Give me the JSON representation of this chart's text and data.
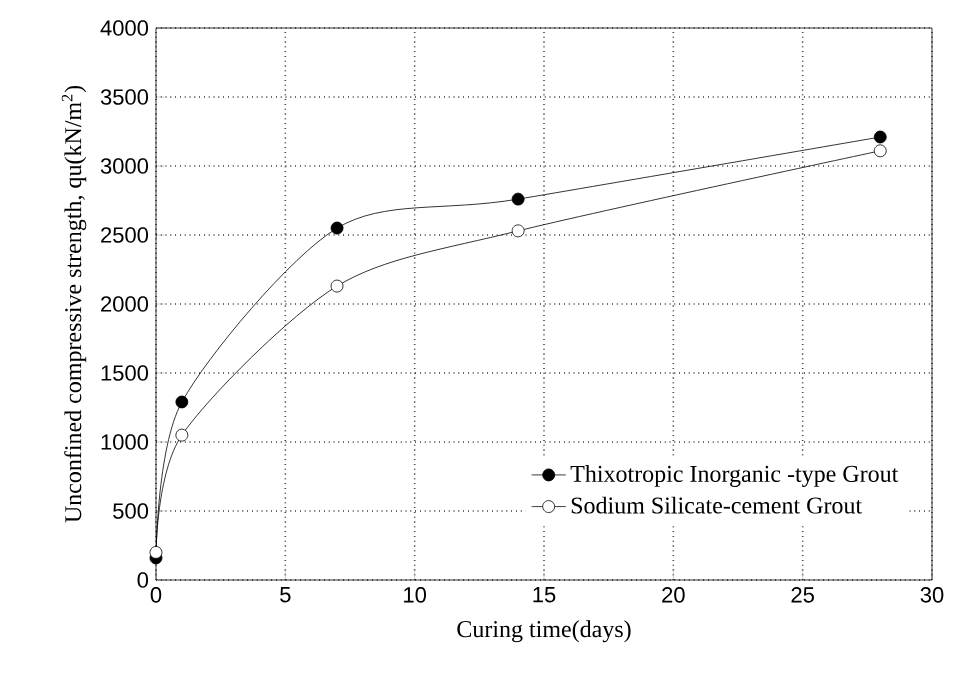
{
  "chart_data": {
    "type": "line",
    "xlabel": "Curing time(days)",
    "ylabel": "Unconfined compressive strength, qu(kN/m$^{2}$)",
    "x": [
      0,
      1,
      7,
      14,
      28
    ],
    "series": [
      {
        "name": "Thixotropic Inorganic -type Grout",
        "color": "#000000",
        "values": [
          160,
          1290,
          2550,
          2760,
          3210
        ]
      },
      {
        "name": "Sodium Silicate-cement Grout",
        "color": "#000000",
        "values": [
          200,
          1050,
          2130,
          2530,
          3110
        ]
      }
    ],
    "xlim": [
      0,
      30
    ],
    "xticks": [
      0,
      5,
      10,
      15,
      20,
      25,
      30
    ],
    "ylim": [
      0,
      4000
    ],
    "yticks": [
      0,
      500,
      1000,
      1500,
      2000,
      2500,
      3000,
      3500,
      4000
    ],
    "grid": true,
    "legend": "bottom right",
    "marker": "circle",
    "line_style": "solid"
  }
}
